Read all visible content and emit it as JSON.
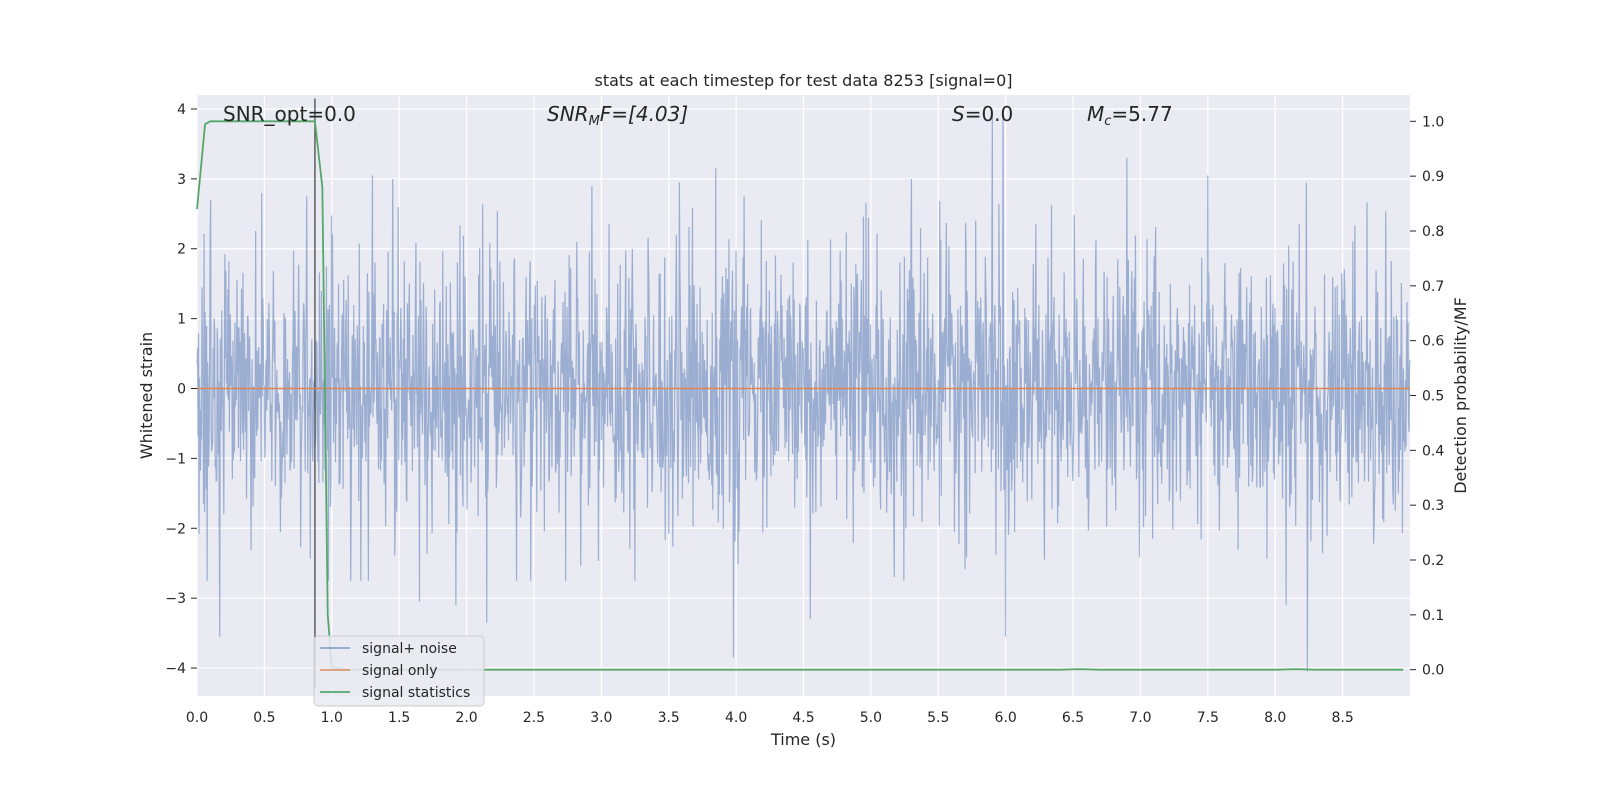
{
  "chart_data": {
    "type": "line",
    "title": "stats at each timestep for test data 8253 [signal=0]",
    "xlabel": "Time (s)",
    "ylabel": "Whitened strain",
    "ylabel_right": "Detection probability/MF",
    "xlim": [
      0.0,
      9.0
    ],
    "ylim": [
      -4.4,
      4.2
    ],
    "ylim_right": [
      -0.048,
      1.048
    ],
    "xticks": [
      0.0,
      0.5,
      1.0,
      1.5,
      2.0,
      2.5,
      3.0,
      3.5,
      4.0,
      4.5,
      5.0,
      5.5,
      6.0,
      6.5,
      7.0,
      7.5,
      8.0,
      8.5
    ],
    "xtick_labels": [
      "0.0",
      "0.5",
      "1.0",
      "1.5",
      "2.0",
      "2.5",
      "3.0",
      "3.5",
      "4.0",
      "4.5",
      "5.0",
      "5.5",
      "6.0",
      "6.5",
      "7.0",
      "7.5",
      "8.0",
      "8.5"
    ],
    "yticks": [
      4,
      3,
      2,
      1,
      0,
      -1,
      -2,
      -3,
      -4
    ],
    "ytick_labels": [
      "4",
      "3",
      "2",
      "1",
      "0",
      "−1",
      "−2",
      "−3",
      "−4"
    ],
    "yticks_right": [
      1.0,
      0.9,
      0.8,
      0.7,
      0.6,
      0.5,
      0.4,
      0.3,
      0.2,
      0.1,
      0.0
    ],
    "ytick_right_labels": [
      "1.0",
      "0.9",
      "0.8",
      "0.7",
      "0.6",
      "0.5",
      "0.4",
      "0.3",
      "0.2",
      "0.1",
      "0.0"
    ],
    "grid": true,
    "legend_placement": "lower-left",
    "annotations": {
      "snr_opt": "SNR_opt=0.0",
      "snr_mf_base": "SNR",
      "snr_mf_sub": "M",
      "snr_mf_rest": "F=[4.03]",
      "s_label": "S",
      "s_rest": "=0.0",
      "mc_base": "M",
      "mc_sub": "c",
      "mc_rest": "=5.77"
    },
    "marker_x": 0.875,
    "series": [
      {
        "name": "signal+ noise",
        "color": "#4c72b0",
        "axis": "left",
        "x_range": [
          0.0,
          9.0
        ],
        "approx_sigma": 1.0,
        "notable_peaks": [
          {
            "x": 0.1,
            "y": 2.7
          },
          {
            "x": 0.17,
            "y": -3.55
          },
          {
            "x": 0.48,
            "y": 2.8
          },
          {
            "x": 1.3,
            "y": 3.05
          },
          {
            "x": 1.45,
            "y": 3.0
          },
          {
            "x": 1.65,
            "y": -3.05
          },
          {
            "x": 1.92,
            "y": -3.1
          },
          {
            "x": 2.15,
            "y": -3.35
          },
          {
            "x": 2.93,
            "y": 2.9
          },
          {
            "x": 3.58,
            "y": 2.95
          },
          {
            "x": 3.85,
            "y": 3.15
          },
          {
            "x": 3.98,
            "y": -3.85
          },
          {
            "x": 4.55,
            "y": -3.3
          },
          {
            "x": 5.3,
            "y": 3.0
          },
          {
            "x": 5.9,
            "y": 3.95
          },
          {
            "x": 5.98,
            "y": 3.9
          },
          {
            "x": 6.0,
            "y": -3.55
          },
          {
            "x": 6.9,
            "y": 3.3
          },
          {
            "x": 7.5,
            "y": 3.05
          },
          {
            "x": 8.08,
            "y": -3.1
          },
          {
            "x": 8.23,
            "y": 2.95
          },
          {
            "x": 8.24,
            "y": -4.05
          }
        ]
      },
      {
        "name": "signal only",
        "color": "#dd8452",
        "axis": "left",
        "x": [
          0.0,
          9.0
        ],
        "y": [
          0.0,
          0.0
        ]
      },
      {
        "name": "signal statistics",
        "color": "#55a868",
        "axis": "right",
        "x": [
          0.0,
          0.06,
          0.1,
          0.2,
          0.5,
          0.8,
          0.875,
          0.93,
          0.97,
          1.0,
          1.1,
          2.0,
          3.0,
          4.0,
          5.0,
          6.0,
          6.4,
          6.55,
          6.7,
          7.0,
          8.0,
          8.15,
          8.3,
          8.95
        ],
        "y": [
          0.84,
          0.995,
          1.0,
          1.0,
          1.0,
          1.0,
          1.0,
          0.88,
          0.1,
          0.005,
          0.0,
          0.0,
          0.0,
          0.0,
          0.0,
          0.0,
          0.0,
          0.001,
          0.0,
          0.0,
          0.0,
          0.001,
          0.0,
          0.0
        ]
      }
    ]
  }
}
